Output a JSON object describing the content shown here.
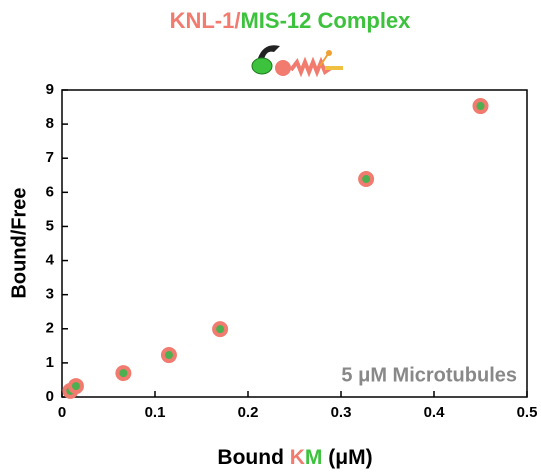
{
  "chart_data": {
    "type": "scatter",
    "title_parts": [
      {
        "text": "KNL-1/",
        "color": "#f07b6e"
      },
      {
        "text": "MIS-12 Complex",
        "color": "#3cc23c"
      }
    ],
    "x_label_parts": [
      {
        "text": "Bound ",
        "color": "#000000"
      },
      {
        "text": "K",
        "color": "#f07b6e"
      },
      {
        "text": "M",
        "color": "#3cc23c"
      },
      {
        "text": " (μM)",
        "color": "#000000"
      }
    ],
    "y_label": "Bound/Free",
    "annotation": "5 μM Microtubules",
    "x": [
      0.009,
      0.015,
      0.066,
      0.115,
      0.17,
      0.327,
      0.45
    ],
    "values": [
      0.18,
      0.32,
      0.7,
      1.23,
      1.99,
      6.39,
      8.53
    ],
    "color": "#f07b6e",
    "inner_color": "#4caf50",
    "xlim": [
      0,
      0.5
    ],
    "xticks": [
      0,
      0.1,
      0.2,
      0.3,
      0.4,
      0.5
    ],
    "ylim": [
      0,
      9
    ],
    "yticks": [
      0,
      1,
      2,
      3,
      4,
      5,
      6,
      7,
      8,
      9
    ],
    "grid": false
  }
}
